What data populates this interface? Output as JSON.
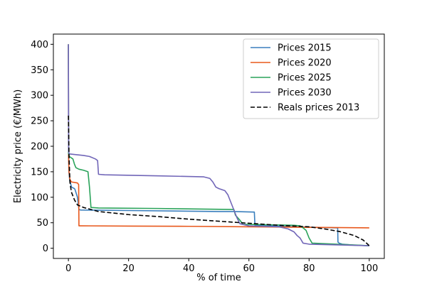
{
  "chart_data": {
    "type": "line",
    "title": "",
    "xlabel": "% of time",
    "ylabel": "Electricity price (€/MWh)",
    "xlim": [
      -5,
      105
    ],
    "ylim": [
      -20,
      420
    ],
    "xticks": [
      0,
      20,
      40,
      60,
      80,
      100
    ],
    "yticks": [
      0,
      50,
      100,
      150,
      200,
      250,
      300,
      350,
      400
    ],
    "grid": false,
    "legend_position": "top-right",
    "series": [
      {
        "name": "Prices 2015",
        "color": "#3a7fbd",
        "dash": "solid",
        "points": [
          [
            0,
            400
          ],
          [
            0.05,
            200
          ],
          [
            0.15,
            150
          ],
          [
            0.4,
            135
          ],
          [
            1,
            120
          ],
          [
            2,
            117
          ],
          [
            2.2,
            115
          ],
          [
            3,
            100
          ],
          [
            3.5,
            76
          ],
          [
            4,
            75
          ],
          [
            20,
            74
          ],
          [
            50,
            72
          ],
          [
            55,
            72
          ],
          [
            61.8,
            71
          ],
          [
            62,
            45
          ],
          [
            75,
            42
          ],
          [
            89.5,
            40
          ],
          [
            89.6,
            12
          ],
          [
            90,
            10
          ],
          [
            91,
            8
          ],
          [
            95,
            6
          ],
          [
            100,
            5
          ]
        ]
      },
      {
        "name": "Prices 2020",
        "color": "#e8581c",
        "dash": "solid",
        "points": [
          [
            0,
            400
          ],
          [
            0.05,
            180
          ],
          [
            0.2,
            150
          ],
          [
            0.5,
            135
          ],
          [
            1,
            130
          ],
          [
            3,
            128
          ],
          [
            3.4,
            125
          ],
          [
            3.5,
            44
          ],
          [
            4,
            44
          ],
          [
            20,
            43.5
          ],
          [
            40,
            43
          ],
          [
            60,
            42
          ],
          [
            80,
            41
          ],
          [
            100,
            40
          ]
        ]
      },
      {
        "name": "Prices 2025",
        "color": "#2aa35a",
        "dash": "solid",
        "points": [
          [
            0,
            400
          ],
          [
            0.05,
            185
          ],
          [
            0.3,
            180
          ],
          [
            1.5,
            175
          ],
          [
            2,
            165
          ],
          [
            2.5,
            158
          ],
          [
            3.5,
            155
          ],
          [
            5,
            153
          ],
          [
            6.5,
            150
          ],
          [
            7,
            120
          ],
          [
            7.5,
            80
          ],
          [
            10,
            79
          ],
          [
            30,
            78
          ],
          [
            55,
            76
          ],
          [
            55.5,
            65
          ],
          [
            57,
            55
          ],
          [
            58,
            47
          ],
          [
            75,
            45
          ],
          [
            77,
            44
          ],
          [
            78,
            40
          ],
          [
            79,
            35
          ],
          [
            80,
            20
          ],
          [
            81,
            10
          ],
          [
            100,
            5
          ]
        ]
      },
      {
        "name": "Prices 2030",
        "color": "#7166b8",
        "dash": "solid",
        "points": [
          [
            0,
            400
          ],
          [
            0.05,
            190
          ],
          [
            0.3,
            185
          ],
          [
            5,
            182
          ],
          [
            7,
            180
          ],
          [
            9,
            175
          ],
          [
            9.7,
            172
          ],
          [
            10,
            145
          ],
          [
            12,
            144
          ],
          [
            30,
            142
          ],
          [
            45,
            140
          ],
          [
            47,
            137
          ],
          [
            48,
            130
          ],
          [
            49,
            120
          ],
          [
            50,
            117
          ],
          [
            52,
            113
          ],
          [
            53,
            105
          ],
          [
            54,
            90
          ],
          [
            55,
            75
          ],
          [
            56,
            60
          ],
          [
            57,
            48
          ],
          [
            60,
            44
          ],
          [
            70,
            42
          ],
          [
            73,
            38
          ],
          [
            75,
            32
          ],
          [
            76,
            25
          ],
          [
            77,
            20
          ],
          [
            78,
            10
          ],
          [
            80,
            8
          ],
          [
            100,
            5
          ]
        ]
      },
      {
        "name": "Reals prices 2013",
        "color": "#000000",
        "dash": "dashed",
        "points": [
          [
            0,
            260
          ],
          [
            0.2,
            180
          ],
          [
            0.5,
            130
          ],
          [
            1,
            110
          ],
          [
            2,
            95
          ],
          [
            3,
            85
          ],
          [
            5,
            80
          ],
          [
            10,
            72
          ],
          [
            20,
            66
          ],
          [
            30,
            62
          ],
          [
            40,
            57
          ],
          [
            50,
            53
          ],
          [
            60,
            49
          ],
          [
            70,
            45
          ],
          [
            80,
            42
          ],
          [
            85,
            38
          ],
          [
            90,
            33
          ],
          [
            95,
            25
          ],
          [
            98,
            16
          ],
          [
            100,
            5
          ]
        ]
      }
    ]
  }
}
